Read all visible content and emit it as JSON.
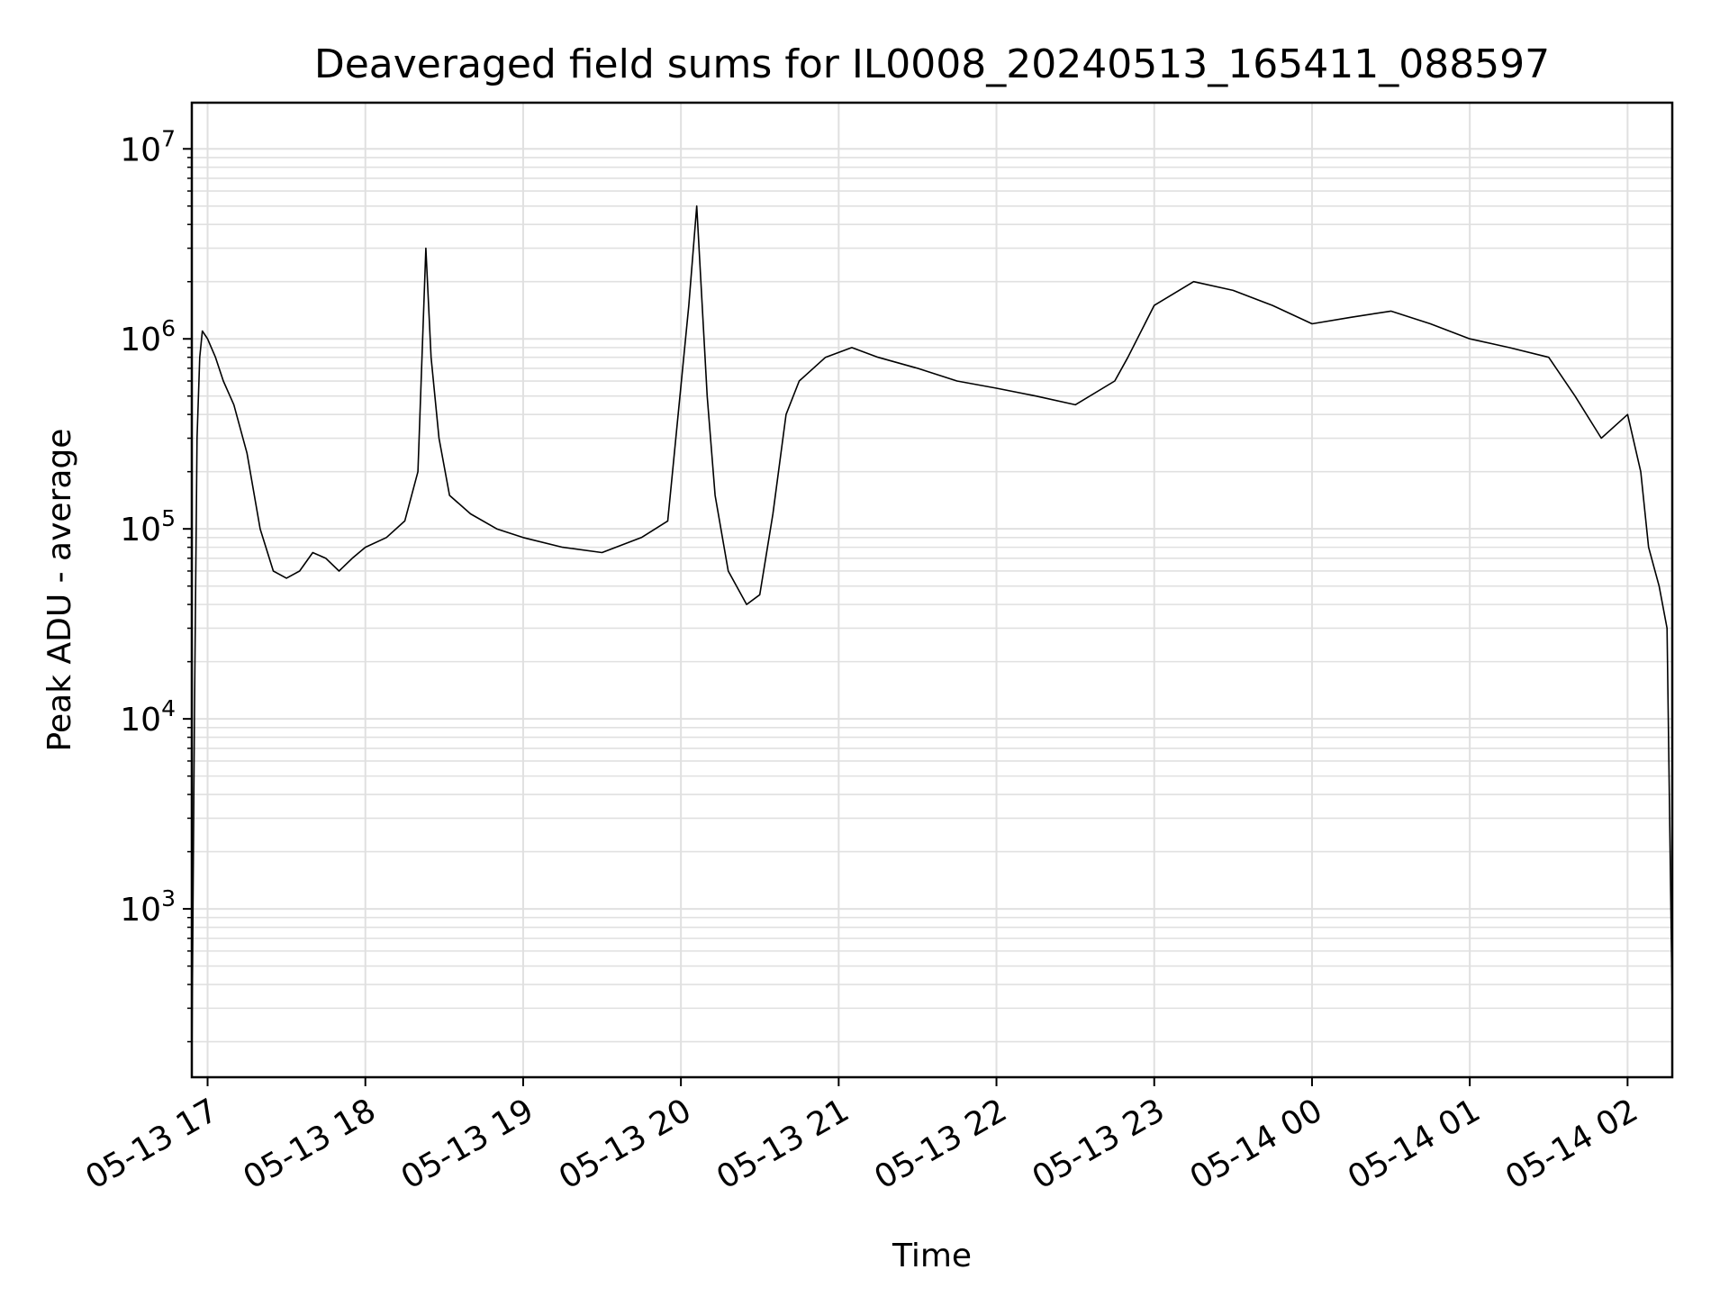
{
  "chart_data": {
    "type": "line",
    "title": "Deaveraged field sums for IL0008_20240513_165411_088597",
    "xlabel": "Time",
    "ylabel": "Peak ADU - average",
    "yscale": "log",
    "grid": true,
    "legend": "none",
    "line_color": "#000000",
    "grid_color": "#e0e0e0",
    "xlim": [
      "2024-05-13 16:54",
      "2024-05-14 02:17"
    ],
    "ylim": [
      130,
      17500000
    ],
    "x_tick_labels": [
      "05-13 17",
      "05-13 18",
      "05-13 19",
      "05-13 20",
      "05-13 21",
      "05-13 22",
      "05-13 23",
      "05-14 00",
      "05-14 01",
      "05-14 02"
    ],
    "x_ticks": [
      "2024-05-13 17:00",
      "2024-05-13 18:00",
      "2024-05-13 19:00",
      "2024-05-13 20:00",
      "2024-05-13 21:00",
      "2024-05-13 22:00",
      "2024-05-13 23:00",
      "2024-05-14 00:00",
      "2024-05-14 01:00",
      "2024-05-14 02:00"
    ],
    "y_ticks": [
      {
        "value": 1000,
        "base": "10",
        "exp": "3"
      },
      {
        "value": 10000,
        "base": "10",
        "exp": "4"
      },
      {
        "value": 100000,
        "base": "10",
        "exp": "5"
      },
      {
        "value": 1000000,
        "base": "10",
        "exp": "6"
      },
      {
        "value": 10000000,
        "base": "10",
        "exp": "7"
      }
    ],
    "series": [
      {
        "x": [
          "2024-05-13 16:54",
          "2024-05-13 16:55",
          "2024-05-13 16:56",
          "2024-05-13 16:57",
          "2024-05-13 16:58",
          "2024-05-13 17:00",
          "2024-05-13 17:03",
          "2024-05-13 17:06",
          "2024-05-13 17:10",
          "2024-05-13 17:15",
          "2024-05-13 17:20",
          "2024-05-13 17:25",
          "2024-05-13 17:30",
          "2024-05-13 17:35",
          "2024-05-13 17:40",
          "2024-05-13 17:45",
          "2024-05-13 17:50",
          "2024-05-13 17:55",
          "2024-05-13 18:00",
          "2024-05-13 18:08",
          "2024-05-13 18:15",
          "2024-05-13 18:20",
          "2024-05-13 18:23",
          "2024-05-13 18:25",
          "2024-05-13 18:28",
          "2024-05-13 18:32",
          "2024-05-13 18:40",
          "2024-05-13 18:50",
          "2024-05-13 19:00",
          "2024-05-13 19:15",
          "2024-05-13 19:30",
          "2024-05-13 19:45",
          "2024-05-13 19:55",
          "2024-05-13 20:03",
          "2024-05-13 20:06",
          "2024-05-13 20:10",
          "2024-05-13 20:13",
          "2024-05-13 20:18",
          "2024-05-13 20:25",
          "2024-05-13 20:30",
          "2024-05-13 20:35",
          "2024-05-13 20:40",
          "2024-05-13 20:45",
          "2024-05-13 20:55",
          "2024-05-13 21:05",
          "2024-05-13 21:15",
          "2024-05-13 21:30",
          "2024-05-13 21:45",
          "2024-05-13 22:00",
          "2024-05-13 22:15",
          "2024-05-13 22:30",
          "2024-05-13 22:45",
          "2024-05-13 22:50",
          "2024-05-13 23:00",
          "2024-05-13 23:15",
          "2024-05-13 23:30",
          "2024-05-13 23:45",
          "2024-05-14 00:00",
          "2024-05-14 00:15",
          "2024-05-14 00:30",
          "2024-05-14 00:45",
          "2024-05-14 01:00",
          "2024-05-14 01:15",
          "2024-05-14 01:30",
          "2024-05-14 01:40",
          "2024-05-14 01:50",
          "2024-05-14 02:00",
          "2024-05-14 02:05",
          "2024-05-14 02:08",
          "2024-05-14 02:12",
          "2024-05-14 02:15",
          "2024-05-14 02:17"
        ],
        "y": [
          150,
          10000,
          300000,
          800000,
          1100000,
          1000000,
          800000,
          600000,
          450000,
          250000,
          100000,
          60000,
          55000,
          60000,
          75000,
          70000,
          60000,
          70000,
          80000,
          90000,
          110000,
          200000,
          3000000,
          800000,
          300000,
          150000,
          120000,
          100000,
          90000,
          80000,
          75000,
          90000,
          110000,
          1500000,
          5000000,
          500000,
          150000,
          60000,
          40000,
          45000,
          120000,
          400000,
          600000,
          800000,
          900000,
          800000,
          700000,
          600000,
          550000,
          500000,
          450000,
          600000,
          800000,
          1500000,
          2000000,
          1800000,
          1500000,
          1200000,
          1300000,
          1400000,
          1200000,
          1000000,
          900000,
          800000,
          500000,
          300000,
          400000,
          200000,
          80000,
          50000,
          30000,
          300
        ]
      }
    ]
  }
}
